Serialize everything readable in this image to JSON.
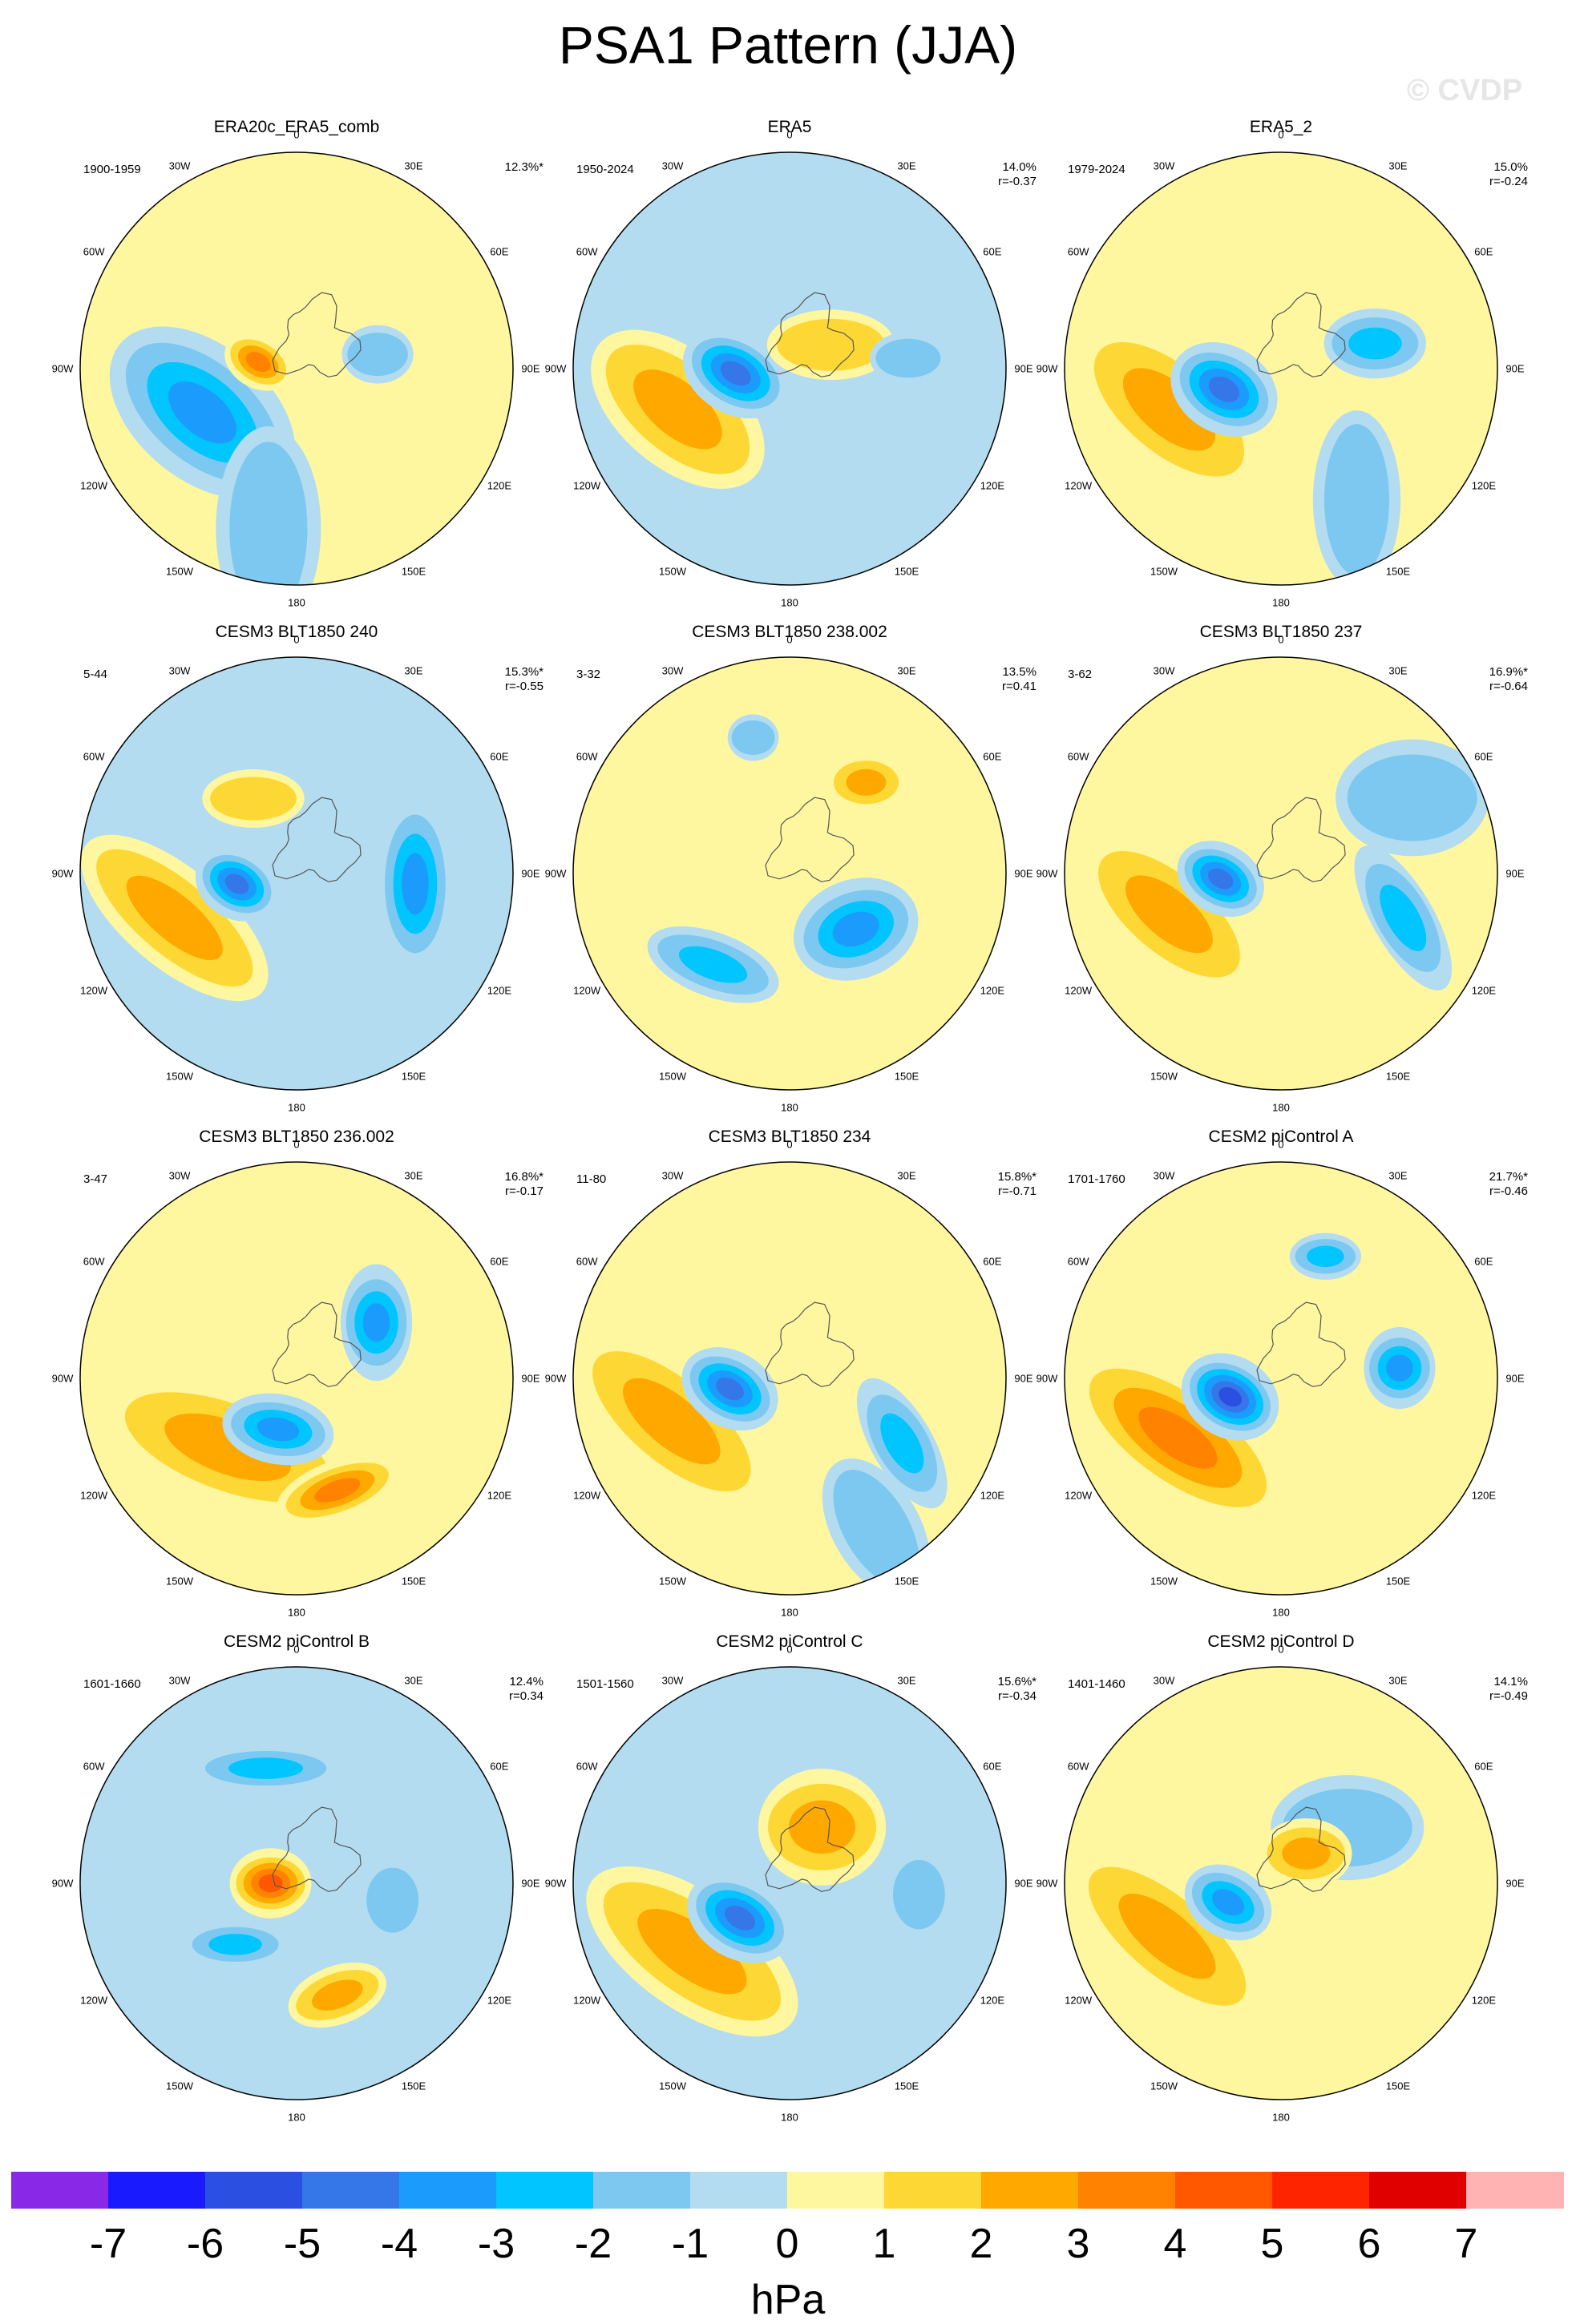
{
  "title": "PSA1 Pattern (JJA)",
  "watermark": "© CVDP",
  "lon_labels": [
    "0",
    "30E",
    "60E",
    "90E",
    "120E",
    "150E",
    "180",
    "150W",
    "120W",
    "90W",
    "60W",
    "30W"
  ],
  "colors": {
    "-7": "#8a28e8",
    "-6": "#1a1aff",
    "-5": "#2b4fe0",
    "-4": "#3577e8",
    "-3": "#1b9cfc",
    "-2": "#00c5ff",
    "-1": "#7cc8f0",
    "0a": "#b3dcf0",
    "0b": "#fff7a0",
    "1": "#fdd835",
    "2": "#ffa800",
    "3": "#ff8200",
    "4": "#ff5800",
    "5": "#ff2400",
    "6": "#e00000",
    "7": "#ffb3b3"
  },
  "panels": [
    {
      "title": "ERA20c_ERA5_comb",
      "years": "1900-1959",
      "pct": "12.3%*",
      "r": "",
      "bg": "pos",
      "blobs": [
        {
          "lon": -115,
          "d": 0.48,
          "a": 0.42,
          "b": 0.23,
          "rot": 40,
          "v": -3
        },
        {
          "lon": -80,
          "d": 0.18,
          "a": 0.14,
          "b": 0.09,
          "rot": 30,
          "v": 3
        },
        {
          "lon": 80,
          "d": 0.38,
          "a": 0.14,
          "b": 0.1,
          "rot": 0,
          "v": -1
        },
        {
          "lon": -170,
          "d": 0.75,
          "a": 0.4,
          "b": 0.18,
          "rot": -90,
          "v": -1
        }
      ]
    },
    {
      "title": "ERA5",
      "years": "1950-2024",
      "pct": "14.0%",
      "r": "r=-0.37",
      "bg": "neg",
      "blobs": [
        {
          "lon": -110,
          "d": 0.55,
          "a": 0.4,
          "b": 0.2,
          "rot": 40,
          "v": 2
        },
        {
          "lon": -95,
          "d": 0.25,
          "a": 0.22,
          "b": 0.14,
          "rot": 30,
          "v": -4
        },
        {
          "lon": 60,
          "d": 0.22,
          "a": 0.25,
          "b": 0.12,
          "rot": 0,
          "v": 1
        },
        {
          "lon": 85,
          "d": 0.55,
          "a": 0.15,
          "b": 0.09,
          "rot": 0,
          "v": -1
        }
      ]
    },
    {
      "title": "ERA5_2",
      "years": "1979-2024",
      "pct": "15.0%",
      "r": "r=-0.24",
      "bg": "pos",
      "blobs": [
        {
          "lon": -110,
          "d": 0.55,
          "a": 0.42,
          "b": 0.2,
          "rot": 40,
          "v": 2
        },
        {
          "lon": -110,
          "d": 0.28,
          "a": 0.22,
          "b": 0.15,
          "rot": 30,
          "v": -4
        },
        {
          "lon": 75,
          "d": 0.45,
          "a": 0.2,
          "b": 0.12,
          "rot": 0,
          "v": -2
        },
        {
          "lon": 150,
          "d": 0.7,
          "a": 0.35,
          "b": 0.15,
          "rot": 90,
          "v": -1
        }
      ]
    },
    {
      "title": "CESM3 BLT1850 240",
      "years": "5-44",
      "pct": "15.3%*",
      "r": "r=-0.55",
      "bg": "neg",
      "blobs": [
        {
          "lon": -110,
          "d": 0.6,
          "a": 0.45,
          "b": 0.17,
          "rot": 40,
          "v": 2
        },
        {
          "lon": -100,
          "d": 0.28,
          "a": 0.17,
          "b": 0.12,
          "rot": 30,
          "v": -4
        },
        {
          "lon": 95,
          "d": 0.55,
          "a": 0.14,
          "b": 0.32,
          "rot": 0,
          "v": -3
        },
        {
          "lon": -30,
          "d": 0.4,
          "a": 0.2,
          "b": 0.1,
          "rot": 0,
          "v": 1
        }
      ]
    },
    {
      "title": "CESM3 BLT1850 238.002",
      "years": "3-32",
      "pct": "13.5%",
      "r": "r=0.41",
      "bg": "pos",
      "blobs": [
        {
          "lon": 130,
          "d": 0.4,
          "a": 0.25,
          "b": 0.17,
          "rot": -20,
          "v": -3
        },
        {
          "lon": -140,
          "d": 0.55,
          "a": 0.27,
          "b": 0.11,
          "rot": 20,
          "v": -2
        },
        {
          "lon": 40,
          "d": 0.55,
          "a": 0.15,
          "b": 0.1,
          "rot": 0,
          "v": 2
        },
        {
          "lon": -15,
          "d": 0.65,
          "a": 0.1,
          "b": 0.08,
          "rot": 0,
          "v": -1
        }
      ]
    },
    {
      "title": "CESM3 BLT1850 237",
      "years": "3-62",
      "pct": "16.9%*",
      "r": "r=-0.64",
      "bg": "pos",
      "blobs": [
        {
          "lon": -110,
          "d": 0.55,
          "a": 0.4,
          "b": 0.18,
          "rot": 40,
          "v": 2
        },
        {
          "lon": -95,
          "d": 0.28,
          "a": 0.18,
          "b": 0.12,
          "rot": 30,
          "v": -4
        },
        {
          "lon": 110,
          "d": 0.6,
          "a": 0.12,
          "b": 0.28,
          "rot": -30,
          "v": -2
        },
        {
          "lon": 60,
          "d": 0.7,
          "a": 0.3,
          "b": 0.2,
          "rot": 0,
          "v": -1
        }
      ]
    },
    {
      "title": "CESM3 BLT1850 236.002",
      "years": "3-47",
      "pct": "16.8%*",
      "r": "r=-0.17",
      "bg": "pos",
      "blobs": [
        {
          "lon": -135,
          "d": 0.45,
          "a": 0.5,
          "b": 0.2,
          "rot": 20,
          "v": 2
        },
        {
          "lon": -160,
          "d": 0.25,
          "a": 0.22,
          "b": 0.12,
          "rot": 10,
          "v": -3
        },
        {
          "lon": 55,
          "d": 0.45,
          "a": 0.14,
          "b": 0.2,
          "rot": 0,
          "v": -3
        },
        {
          "lon": 160,
          "d": 0.55,
          "a": 0.25,
          "b": 0.1,
          "rot": -20,
          "v": 3
        }
      ]
    },
    {
      "title": "CESM3 BLT1850 234",
      "years": "11-80",
      "pct": "15.8%*",
      "r": "r=-0.71",
      "bg": "pos",
      "blobs": [
        {
          "lon": -110,
          "d": 0.58,
          "a": 0.45,
          "b": 0.19,
          "rot": 40,
          "v": 2
        },
        {
          "lon": -100,
          "d": 0.28,
          "a": 0.2,
          "b": 0.13,
          "rot": 30,
          "v": -4
        },
        {
          "lon": 120,
          "d": 0.6,
          "a": 0.12,
          "b": 0.25,
          "rot": -30,
          "v": -2
        },
        {
          "lon": 150,
          "d": 0.8,
          "a": 0.3,
          "b": 0.15,
          "rot": 60,
          "v": -1
        }
      ]
    },
    {
      "title": "CESM2 piControl A",
      "years": "1701-1760",
      "pct": "21.7%*",
      "r": "r=-0.46",
      "bg": "pos",
      "blobs": [
        {
          "lon": -120,
          "d": 0.55,
          "a": 0.48,
          "b": 0.2,
          "rot": 35,
          "v": 3
        },
        {
          "lon": -110,
          "d": 0.25,
          "a": 0.2,
          "b": 0.14,
          "rot": 30,
          "v": -5
        },
        {
          "lon": 85,
          "d": 0.55,
          "a": 0.14,
          "b": 0.14,
          "rot": 0,
          "v": -3
        },
        {
          "lon": 20,
          "d": 0.6,
          "a": 0.14,
          "b": 0.08,
          "rot": 0,
          "v": -2
        }
      ]
    },
    {
      "title": "CESM2 piControl B",
      "years": "1601-1660",
      "pct": "12.4%",
      "r": "r=0.34",
      "bg": "neg",
      "blobs": [
        {
          "lon": -90,
          "d": 0.12,
          "a": 0.16,
          "b": 0.12,
          "rot": 0,
          "v": 4
        },
        {
          "lon": -15,
          "d": 0.55,
          "a": 0.28,
          "b": 0.08,
          "rot": 0,
          "v": -2
        },
        {
          "lon": -135,
          "d": 0.4,
          "a": 0.2,
          "b": 0.08,
          "rot": 0,
          "v": -2
        },
        {
          "lon": 100,
          "d": 0.45,
          "a": 0.12,
          "b": 0.15,
          "rot": 0,
          "v": -1
        },
        {
          "lon": 160,
          "d": 0.55,
          "a": 0.2,
          "b": 0.1,
          "rot": -20,
          "v": 2
        }
      ]
    },
    {
      "title": "CESM2 piControl C",
      "years": "1501-1560",
      "pct": "15.6%*",
      "r": "r=-0.34",
      "bg": "neg",
      "blobs": [
        {
          "lon": -125,
          "d": 0.55,
          "a": 0.48,
          "b": 0.2,
          "rot": 35,
          "v": 2
        },
        {
          "lon": -125,
          "d": 0.28,
          "a": 0.22,
          "b": 0.14,
          "rot": 30,
          "v": -4
        },
        {
          "lon": 30,
          "d": 0.3,
          "a": 0.25,
          "b": 0.2,
          "rot": 0,
          "v": 2
        },
        {
          "lon": 95,
          "d": 0.6,
          "a": 0.12,
          "b": 0.16,
          "rot": 0,
          "v": -1
        }
      ]
    },
    {
      "title": "CESM2 piControl D",
      "years": "1401-1460",
      "pct": "14.1%",
      "r": "r=-0.49",
      "bg": "pos",
      "blobs": [
        {
          "lon": -115,
          "d": 0.58,
          "a": 0.45,
          "b": 0.18,
          "rot": 40,
          "v": 2
        },
        {
          "lon": -110,
          "d": 0.26,
          "a": 0.18,
          "b": 0.12,
          "rot": 30,
          "v": -3
        },
        {
          "lon": 50,
          "d": 0.4,
          "a": 0.3,
          "b": 0.18,
          "rot": 0,
          "v": -1
        },
        {
          "lon": 40,
          "d": 0.18,
          "a": 0.18,
          "b": 0.12,
          "rot": 0,
          "v": 2
        }
      ]
    }
  ],
  "colorbar": {
    "labels": [
      "-7",
      "-6",
      "-5",
      "-4",
      "-3",
      "-2",
      "-1",
      "0",
      "1",
      "2",
      "3",
      "4",
      "5",
      "6",
      "7"
    ],
    "units": "hPa",
    "segments": [
      "-7",
      "-6",
      "-5",
      "-4",
      "-3",
      "-2",
      "-1",
      "0a",
      "0b",
      "1",
      "2",
      "3",
      "4",
      "5",
      "6",
      "7"
    ]
  }
}
